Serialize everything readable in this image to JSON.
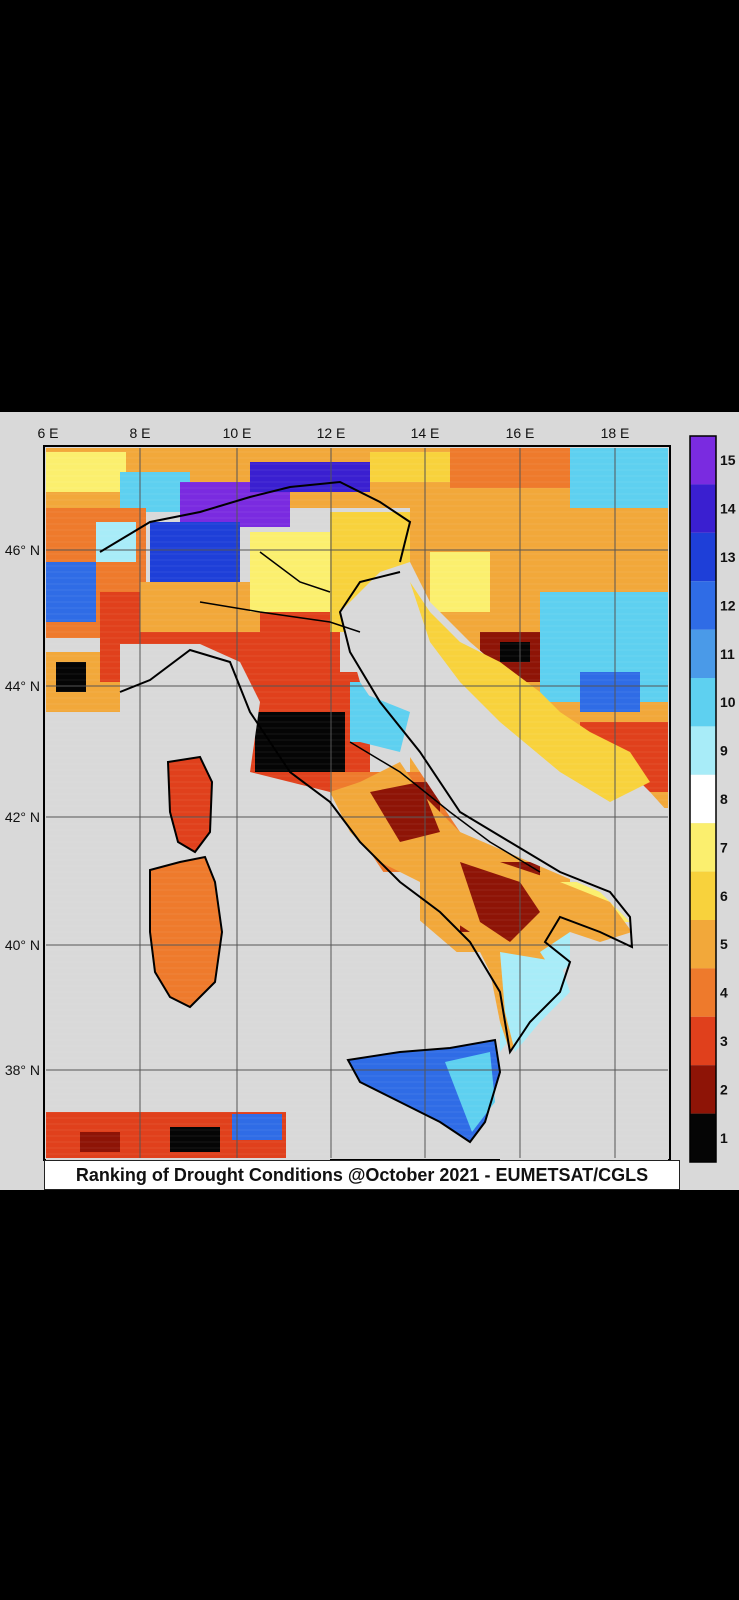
{
  "caption": "Ranking of Drought Conditions @October 2021 - EUMETSAT/CGLS",
  "lon_labels": [
    "6 E",
    "8 E",
    "10 E",
    "12 E",
    "14 E",
    "16 E",
    "18 E"
  ],
  "lat_labels": [
    "46° N",
    "44° N",
    "42° N",
    "40° N",
    "38° N"
  ],
  "colorbar": {
    "labels": [
      "15",
      "14",
      "13",
      "12",
      "11",
      "10",
      "9",
      "8",
      "7",
      "6",
      "5",
      "4",
      "3",
      "2",
      "1"
    ],
    "colors": [
      "#7a2be0",
      "#3a1fd0",
      "#1e3fd8",
      "#2f6ce6",
      "#4a9ae8",
      "#5ed0f0",
      "#a8ecf8",
      "#ffffff",
      "#fbef6e",
      "#f8d23c",
      "#f2a83a",
      "#ee7a2c",
      "#e0401c",
      "#8e1406",
      "#050505"
    ]
  },
  "colors": {
    "land": "#d9d9d9",
    "border": "#000000",
    "grid": "#555555"
  }
}
